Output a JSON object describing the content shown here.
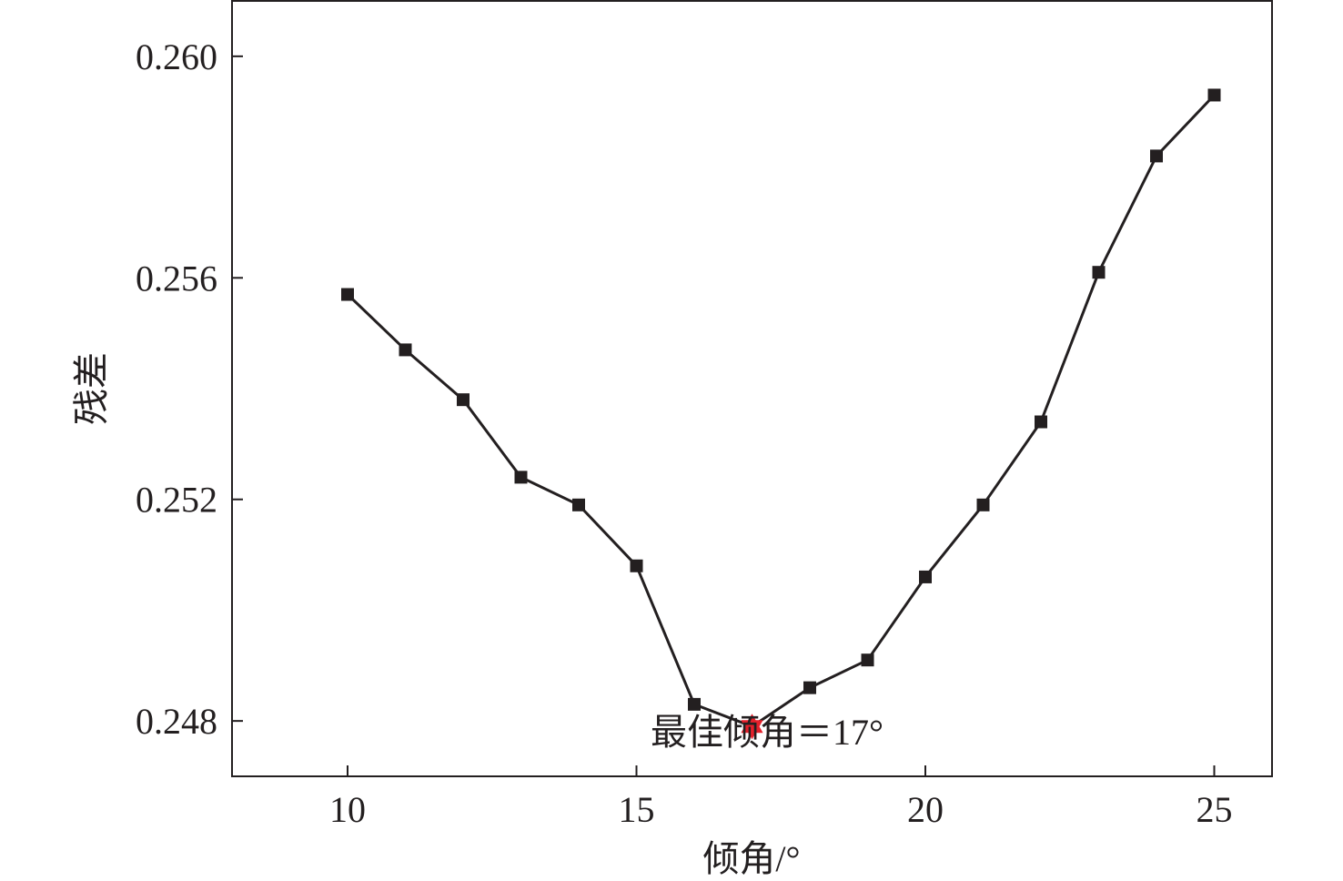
{
  "chart_data": {
    "type": "line",
    "xlabel": "倾角/°",
    "ylabel": "残差",
    "xlim": [
      8,
      26
    ],
    "ylim": [
      0.247,
      0.261
    ],
    "x_ticks": [
      10,
      15,
      20,
      25
    ],
    "x_tick_labels": [
      "10",
      "15",
      "20",
      "25"
    ],
    "y_ticks": [
      0.248,
      0.252,
      0.256,
      0.26
    ],
    "y_tick_labels": [
      "0.248",
      "0.252",
      "0.256",
      "0.260"
    ],
    "grid": false,
    "series": [
      {
        "marker": "square",
        "color": "#231f20",
        "x": [
          10,
          11,
          12,
          13,
          14,
          15,
          16,
          17,
          18,
          19,
          20,
          21,
          22,
          23,
          24,
          25
        ],
        "y": [
          0.2557,
          0.2547,
          0.2538,
          0.2524,
          0.2519,
          0.2508,
          0.2483,
          0.2479,
          0.2486,
          0.2491,
          0.2506,
          0.2519,
          0.2534,
          0.2561,
          0.2582,
          0.2593
        ]
      }
    ],
    "highlight": {
      "x": 17,
      "y": 0.2479,
      "marker": "star",
      "color": "#e4202b"
    },
    "annotation": "最佳倾角＝17°"
  }
}
